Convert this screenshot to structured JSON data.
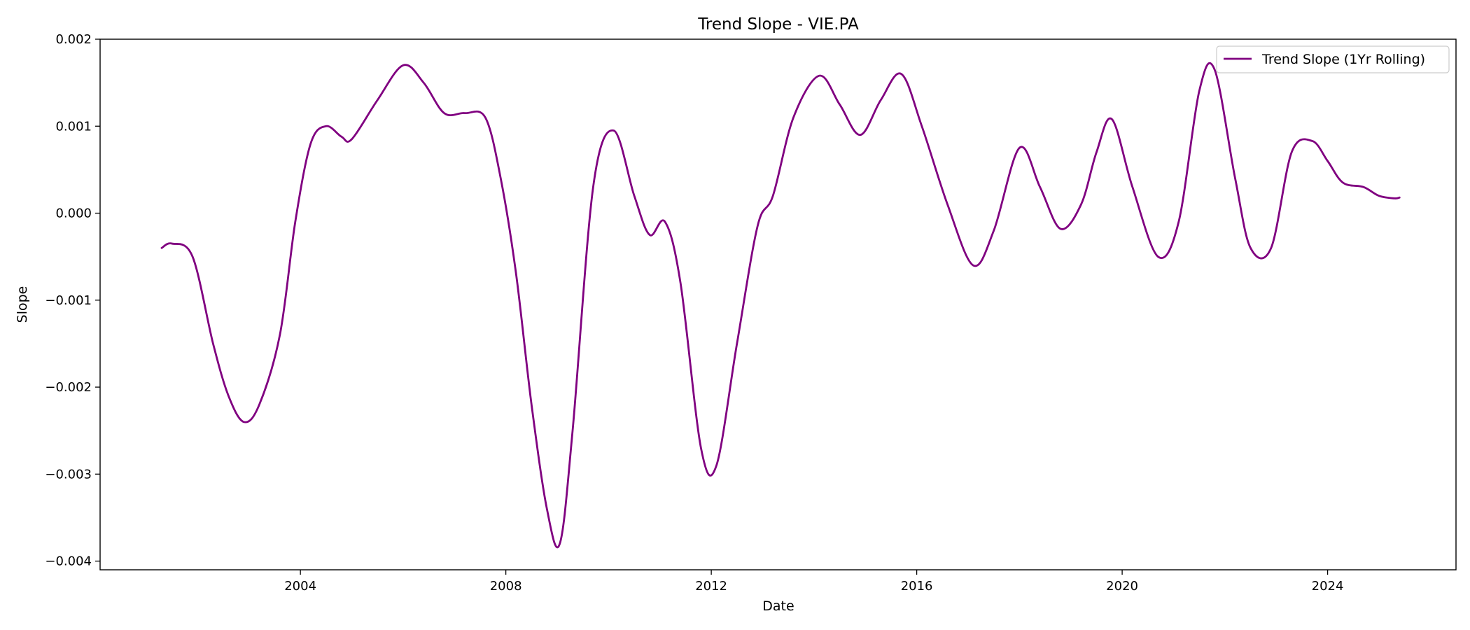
{
  "chart_data": {
    "type": "line",
    "title": "Trend Slope - VIE.PA",
    "xlabel": "Date",
    "ylabel": "Slope",
    "xlim": [
      2000.1,
      2026.5
    ],
    "ylim": [
      -0.0041,
      0.002
    ],
    "x_ticks": [
      2004,
      2008,
      2012,
      2016,
      2020,
      2024
    ],
    "x_tick_labels": [
      "2004",
      "2008",
      "2012",
      "2016",
      "2020",
      "2024"
    ],
    "y_ticks": [
      0.002,
      0.001,
      0.0,
      -0.001,
      -0.002,
      -0.003,
      -0.004
    ],
    "y_tick_labels": [
      "0.002",
      "0.001",
      "0.000",
      "−0.001",
      "−0.002",
      "−0.003",
      "−0.004"
    ],
    "grid": false,
    "legend": {
      "placement": "top-right"
    },
    "series": [
      {
        "name": "Trend Slope (1Yr Rolling)",
        "color": "#800080",
        "x": [
          2001.3,
          2001.5,
          2001.9,
          2002.3,
          2002.6,
          2002.9,
          2003.2,
          2003.6,
          2003.9,
          2004.2,
          2004.5,
          2004.8,
          2005.0,
          2005.5,
          2006.0,
          2006.4,
          2006.8,
          2007.2,
          2007.6,
          2007.9,
          2008.2,
          2008.5,
          2008.8,
          2009.05,
          2009.3,
          2009.7,
          2010.1,
          2010.5,
          2010.8,
          2011.1,
          2011.4,
          2011.8,
          2012.1,
          2012.5,
          2012.9,
          2013.2,
          2013.6,
          2014.1,
          2014.5,
          2014.9,
          2015.3,
          2015.7,
          2016.1,
          2016.6,
          2017.1,
          2017.5,
          2018.0,
          2018.4,
          2018.8,
          2019.2,
          2019.5,
          2019.8,
          2020.2,
          2020.7,
          2021.1,
          2021.5,
          2021.8,
          2022.2,
          2022.5,
          2022.9,
          2023.3,
          2023.7,
          2024.0,
          2024.3,
          2024.7,
          2025.0,
          2025.3,
          2025.4
        ],
        "values": [
          -0.0004,
          -0.00035,
          -0.0005,
          -0.0015,
          -0.0021,
          -0.0024,
          -0.0022,
          -0.0014,
          -0.0001,
          0.0008,
          0.001,
          0.00088,
          0.00085,
          0.0013,
          0.0017,
          0.0015,
          0.00115,
          0.00115,
          0.0011,
          0.0004,
          -0.0007,
          -0.0022,
          -0.0034,
          -0.0038,
          -0.0025,
          0.0003,
          0.00095,
          0.0002,
          -0.00025,
          -0.0001,
          -0.0008,
          -0.0027,
          -0.0029,
          -0.0015,
          -0.00015,
          0.0002,
          0.0011,
          0.00158,
          0.00125,
          0.0009,
          0.0013,
          0.0016,
          0.001,
          0.0001,
          -0.0006,
          -0.0002,
          0.00075,
          0.0003,
          -0.00018,
          0.0001,
          0.0007,
          0.00108,
          0.0003,
          -0.0005,
          -0.0001,
          0.0014,
          0.00165,
          0.0004,
          -0.0004,
          -0.0004,
          0.0007,
          0.00083,
          0.0006,
          0.00035,
          0.0003,
          0.0002,
          0.00017,
          0.00018
        ]
      }
    ]
  }
}
